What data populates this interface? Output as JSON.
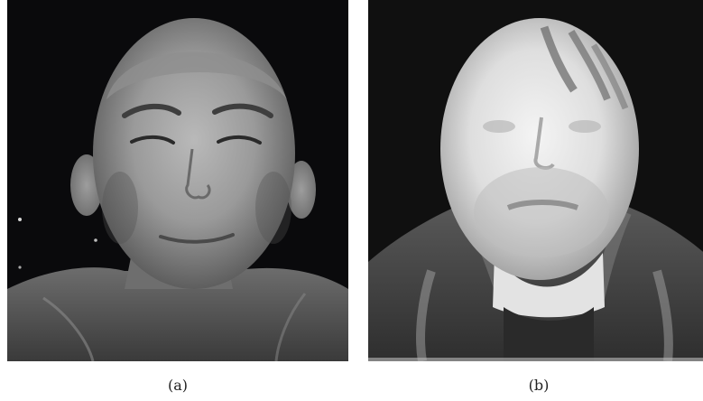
{
  "panels": [
    {
      "id": "a",
      "label": "(a)"
    },
    {
      "id": "b",
      "label": "(b)"
    }
  ]
}
